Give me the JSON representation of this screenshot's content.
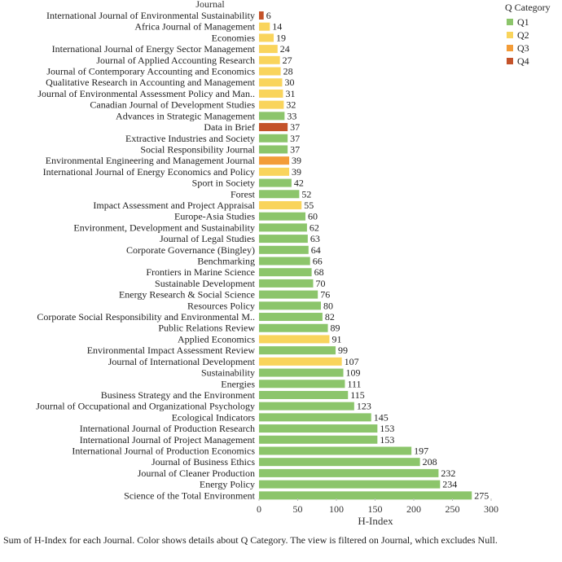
{
  "chart_data": {
    "type": "bar",
    "orientation": "horizontal",
    "row_header": "Journal",
    "xlabel": "H-Index",
    "xlim": [
      0,
      300
    ],
    "xticks": [
      0,
      50,
      100,
      150,
      200,
      250,
      300
    ],
    "legend": {
      "title": "Q Category",
      "placement": "top-right",
      "entries": [
        {
          "name": "Q1",
          "color": "#8CC56B"
        },
        {
          "name": "Q2",
          "color": "#F9D45C"
        },
        {
          "name": "Q3",
          "color": "#F39C38"
        },
        {
          "name": "Q4",
          "color": "#C4532A"
        }
      ]
    },
    "bars": [
      {
        "journal": "International Journal of Environmental Sustainability",
        "value": 6,
        "category": "Q4"
      },
      {
        "journal": "Africa Journal of Management",
        "value": 14,
        "category": "Q2"
      },
      {
        "journal": "Economies",
        "value": 19,
        "category": "Q2"
      },
      {
        "journal": "International Journal of Energy Sector Management",
        "value": 24,
        "category": "Q2"
      },
      {
        "journal": "Journal of Applied Accounting Research",
        "value": 27,
        "category": "Q2"
      },
      {
        "journal": "Journal of Contemporary Accounting and Economics",
        "value": 28,
        "category": "Q2"
      },
      {
        "journal": "Qualitative Research in Accounting and Management",
        "value": 30,
        "category": "Q2"
      },
      {
        "journal": "Journal of Environmental Assessment Policy and Man..",
        "value": 31,
        "category": "Q2"
      },
      {
        "journal": "Canadian Journal of Development Studies",
        "value": 32,
        "category": "Q2"
      },
      {
        "journal": "Advances in Strategic Management",
        "value": 33,
        "category": "Q1"
      },
      {
        "journal": "Data in Brief",
        "value": 37,
        "category": "Q4"
      },
      {
        "journal": "Extractive Industries and Society",
        "value": 37,
        "category": "Q1"
      },
      {
        "journal": "Social Responsibility Journal",
        "value": 37,
        "category": "Q1"
      },
      {
        "journal": "Environmental Engineering and Management Journal",
        "value": 39,
        "category": "Q3"
      },
      {
        "journal": "International Journal of Energy Economics and Policy",
        "value": 39,
        "category": "Q2"
      },
      {
        "journal": "Sport in Society",
        "value": 42,
        "category": "Q1"
      },
      {
        "journal": "Forest",
        "value": 52,
        "category": "Q1"
      },
      {
        "journal": "Impact Assessment and Project Appraisal",
        "value": 55,
        "category": "Q2"
      },
      {
        "journal": "Europe-Asia Studies",
        "value": 60,
        "category": "Q1"
      },
      {
        "journal": "Environment, Development and Sustainability",
        "value": 62,
        "category": "Q1"
      },
      {
        "journal": "Journal of Legal Studies",
        "value": 63,
        "category": "Q1"
      },
      {
        "journal": "Corporate Governance (Bingley)",
        "value": 64,
        "category": "Q1"
      },
      {
        "journal": "Benchmarking",
        "value": 66,
        "category": "Q1"
      },
      {
        "journal": "Frontiers in Marine Science",
        "value": 68,
        "category": "Q1"
      },
      {
        "journal": "Sustainable Development",
        "value": 70,
        "category": "Q1"
      },
      {
        "journal": "Energy Research & Social Science",
        "value": 76,
        "category": "Q1"
      },
      {
        "journal": "Resources Policy",
        "value": 80,
        "category": "Q1"
      },
      {
        "journal": "Corporate Social Responsibility and Environmental M..",
        "value": 82,
        "category": "Q1"
      },
      {
        "journal": "Public Relations Review",
        "value": 89,
        "category": "Q1"
      },
      {
        "journal": "Applied Economics",
        "value": 91,
        "category": "Q2"
      },
      {
        "journal": "Environmental Impact Assessment Review",
        "value": 99,
        "category": "Q1"
      },
      {
        "journal": "Journal of International Development",
        "value": 107,
        "category": "Q2"
      },
      {
        "journal": "Sustainability",
        "value": 109,
        "category": "Q1"
      },
      {
        "journal": "Energies",
        "value": 111,
        "category": "Q1"
      },
      {
        "journal": "Business Strategy and the Environment",
        "value": 115,
        "category": "Q1"
      },
      {
        "journal": "Journal of Occupational and Organizational Psychology",
        "value": 123,
        "category": "Q1"
      },
      {
        "journal": "Ecological Indicators",
        "value": 145,
        "category": "Q1"
      },
      {
        "journal": "International Journal of Production Research",
        "value": 153,
        "category": "Q1"
      },
      {
        "journal": "International Journal of Project Management",
        "value": 153,
        "category": "Q1"
      },
      {
        "journal": "International Journal of Production Economics",
        "value": 197,
        "category": "Q1"
      },
      {
        "journal": "Journal of Business Ethics",
        "value": 208,
        "category": "Q1"
      },
      {
        "journal": "Journal of Cleaner Production",
        "value": 232,
        "category": "Q1"
      },
      {
        "journal": "Energy Policy",
        "value": 234,
        "category": "Q1"
      },
      {
        "journal": "Science of the Total Environment",
        "value": 275,
        "category": "Q1"
      }
    ]
  },
  "caption": "Sum of H-Index for each Journal.  Color shows details about Q Category. The view is filtered on Journal, which excludes Null."
}
